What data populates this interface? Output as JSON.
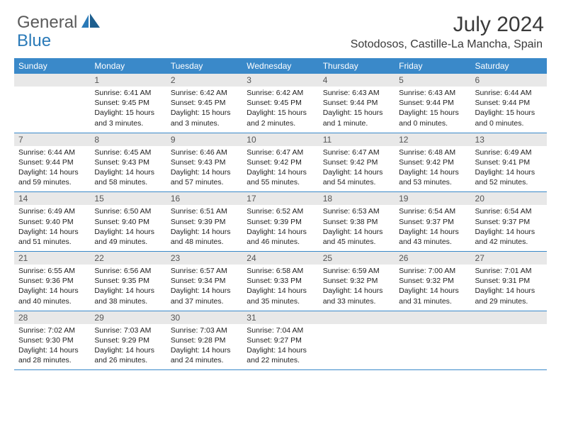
{
  "logo": {
    "word1": "General",
    "word2": "Blue"
  },
  "title": "July 2024",
  "location": "Sotodosos, Castille-La Mancha, Spain",
  "day_headers": [
    "Sunday",
    "Monday",
    "Tuesday",
    "Wednesday",
    "Thursday",
    "Friday",
    "Saturday"
  ],
  "colors": {
    "header_bg": "#3a89c9",
    "header_text": "#ffffff",
    "daynum_bg": "#e8e8e8",
    "border": "#3a89c9",
    "logo_gray": "#5a5a5a",
    "logo_blue": "#2a7ab8"
  },
  "weeks": [
    {
      "nums": [
        "",
        "1",
        "2",
        "3",
        "4",
        "5",
        "6"
      ],
      "cells": [
        {
          "sunrise": "",
          "sunset": "",
          "daylight1": "",
          "daylight2": ""
        },
        {
          "sunrise": "Sunrise: 6:41 AM",
          "sunset": "Sunset: 9:45 PM",
          "daylight1": "Daylight: 15 hours",
          "daylight2": "and 3 minutes."
        },
        {
          "sunrise": "Sunrise: 6:42 AM",
          "sunset": "Sunset: 9:45 PM",
          "daylight1": "Daylight: 15 hours",
          "daylight2": "and 3 minutes."
        },
        {
          "sunrise": "Sunrise: 6:42 AM",
          "sunset": "Sunset: 9:45 PM",
          "daylight1": "Daylight: 15 hours",
          "daylight2": "and 2 minutes."
        },
        {
          "sunrise": "Sunrise: 6:43 AM",
          "sunset": "Sunset: 9:44 PM",
          "daylight1": "Daylight: 15 hours",
          "daylight2": "and 1 minute."
        },
        {
          "sunrise": "Sunrise: 6:43 AM",
          "sunset": "Sunset: 9:44 PM",
          "daylight1": "Daylight: 15 hours",
          "daylight2": "and 0 minutes."
        },
        {
          "sunrise": "Sunrise: 6:44 AM",
          "sunset": "Sunset: 9:44 PM",
          "daylight1": "Daylight: 15 hours",
          "daylight2": "and 0 minutes."
        }
      ]
    },
    {
      "nums": [
        "7",
        "8",
        "9",
        "10",
        "11",
        "12",
        "13"
      ],
      "cells": [
        {
          "sunrise": "Sunrise: 6:44 AM",
          "sunset": "Sunset: 9:44 PM",
          "daylight1": "Daylight: 14 hours",
          "daylight2": "and 59 minutes."
        },
        {
          "sunrise": "Sunrise: 6:45 AM",
          "sunset": "Sunset: 9:43 PM",
          "daylight1": "Daylight: 14 hours",
          "daylight2": "and 58 minutes."
        },
        {
          "sunrise": "Sunrise: 6:46 AM",
          "sunset": "Sunset: 9:43 PM",
          "daylight1": "Daylight: 14 hours",
          "daylight2": "and 57 minutes."
        },
        {
          "sunrise": "Sunrise: 6:47 AM",
          "sunset": "Sunset: 9:42 PM",
          "daylight1": "Daylight: 14 hours",
          "daylight2": "and 55 minutes."
        },
        {
          "sunrise": "Sunrise: 6:47 AM",
          "sunset": "Sunset: 9:42 PM",
          "daylight1": "Daylight: 14 hours",
          "daylight2": "and 54 minutes."
        },
        {
          "sunrise": "Sunrise: 6:48 AM",
          "sunset": "Sunset: 9:42 PM",
          "daylight1": "Daylight: 14 hours",
          "daylight2": "and 53 minutes."
        },
        {
          "sunrise": "Sunrise: 6:49 AM",
          "sunset": "Sunset: 9:41 PM",
          "daylight1": "Daylight: 14 hours",
          "daylight2": "and 52 minutes."
        }
      ]
    },
    {
      "nums": [
        "14",
        "15",
        "16",
        "17",
        "18",
        "19",
        "20"
      ],
      "cells": [
        {
          "sunrise": "Sunrise: 6:49 AM",
          "sunset": "Sunset: 9:40 PM",
          "daylight1": "Daylight: 14 hours",
          "daylight2": "and 51 minutes."
        },
        {
          "sunrise": "Sunrise: 6:50 AM",
          "sunset": "Sunset: 9:40 PM",
          "daylight1": "Daylight: 14 hours",
          "daylight2": "and 49 minutes."
        },
        {
          "sunrise": "Sunrise: 6:51 AM",
          "sunset": "Sunset: 9:39 PM",
          "daylight1": "Daylight: 14 hours",
          "daylight2": "and 48 minutes."
        },
        {
          "sunrise": "Sunrise: 6:52 AM",
          "sunset": "Sunset: 9:39 PM",
          "daylight1": "Daylight: 14 hours",
          "daylight2": "and 46 minutes."
        },
        {
          "sunrise": "Sunrise: 6:53 AM",
          "sunset": "Sunset: 9:38 PM",
          "daylight1": "Daylight: 14 hours",
          "daylight2": "and 45 minutes."
        },
        {
          "sunrise": "Sunrise: 6:54 AM",
          "sunset": "Sunset: 9:37 PM",
          "daylight1": "Daylight: 14 hours",
          "daylight2": "and 43 minutes."
        },
        {
          "sunrise": "Sunrise: 6:54 AM",
          "sunset": "Sunset: 9:37 PM",
          "daylight1": "Daylight: 14 hours",
          "daylight2": "and 42 minutes."
        }
      ]
    },
    {
      "nums": [
        "21",
        "22",
        "23",
        "24",
        "25",
        "26",
        "27"
      ],
      "cells": [
        {
          "sunrise": "Sunrise: 6:55 AM",
          "sunset": "Sunset: 9:36 PM",
          "daylight1": "Daylight: 14 hours",
          "daylight2": "and 40 minutes."
        },
        {
          "sunrise": "Sunrise: 6:56 AM",
          "sunset": "Sunset: 9:35 PM",
          "daylight1": "Daylight: 14 hours",
          "daylight2": "and 38 minutes."
        },
        {
          "sunrise": "Sunrise: 6:57 AM",
          "sunset": "Sunset: 9:34 PM",
          "daylight1": "Daylight: 14 hours",
          "daylight2": "and 37 minutes."
        },
        {
          "sunrise": "Sunrise: 6:58 AM",
          "sunset": "Sunset: 9:33 PM",
          "daylight1": "Daylight: 14 hours",
          "daylight2": "and 35 minutes."
        },
        {
          "sunrise": "Sunrise: 6:59 AM",
          "sunset": "Sunset: 9:32 PM",
          "daylight1": "Daylight: 14 hours",
          "daylight2": "and 33 minutes."
        },
        {
          "sunrise": "Sunrise: 7:00 AM",
          "sunset": "Sunset: 9:32 PM",
          "daylight1": "Daylight: 14 hours",
          "daylight2": "and 31 minutes."
        },
        {
          "sunrise": "Sunrise: 7:01 AM",
          "sunset": "Sunset: 9:31 PM",
          "daylight1": "Daylight: 14 hours",
          "daylight2": "and 29 minutes."
        }
      ]
    },
    {
      "nums": [
        "28",
        "29",
        "30",
        "31",
        "",
        "",
        ""
      ],
      "cells": [
        {
          "sunrise": "Sunrise: 7:02 AM",
          "sunset": "Sunset: 9:30 PM",
          "daylight1": "Daylight: 14 hours",
          "daylight2": "and 28 minutes."
        },
        {
          "sunrise": "Sunrise: 7:03 AM",
          "sunset": "Sunset: 9:29 PM",
          "daylight1": "Daylight: 14 hours",
          "daylight2": "and 26 minutes."
        },
        {
          "sunrise": "Sunrise: 7:03 AM",
          "sunset": "Sunset: 9:28 PM",
          "daylight1": "Daylight: 14 hours",
          "daylight2": "and 24 minutes."
        },
        {
          "sunrise": "Sunrise: 7:04 AM",
          "sunset": "Sunset: 9:27 PM",
          "daylight1": "Daylight: 14 hours",
          "daylight2": "and 22 minutes."
        },
        {
          "sunrise": "",
          "sunset": "",
          "daylight1": "",
          "daylight2": ""
        },
        {
          "sunrise": "",
          "sunset": "",
          "daylight1": "",
          "daylight2": ""
        },
        {
          "sunrise": "",
          "sunset": "",
          "daylight1": "",
          "daylight2": ""
        }
      ]
    }
  ]
}
